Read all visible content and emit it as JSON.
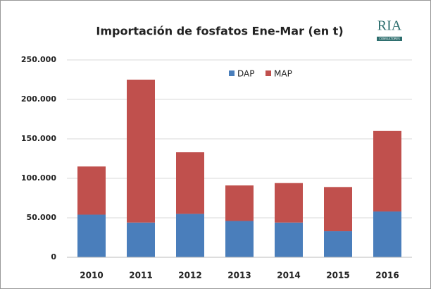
{
  "chart_data": {
    "type": "bar",
    "stacked": true,
    "title": "Importación de fosfatos Ene-Mar (en t)",
    "logo": {
      "name": "RIA",
      "tagline": "CONSULTORES"
    },
    "categories": [
      "2010",
      "2011",
      "2012",
      "2013",
      "2014",
      "2015",
      "2016"
    ],
    "series": [
      {
        "name": "DAP",
        "color": "#4a7ebb",
        "values": [
          54000,
          44000,
          55000,
          46000,
          44000,
          33000,
          58000
        ]
      },
      {
        "name": "MAP",
        "color": "#c0504d",
        "values": [
          61000,
          181000,
          78000,
          45000,
          50000,
          56000,
          102000
        ]
      }
    ],
    "ylim": [
      0,
      250000
    ],
    "yticks": [
      0,
      {
        "value": 50000,
        "label": "50.000"
      },
      {
        "value": 100000,
        "label": "100.000"
      },
      {
        "value": 150000,
        "label": "150.000"
      },
      {
        "value": 200000,
        "label": "200.000"
      },
      {
        "value": 250000,
        "label": "250.000"
      }
    ],
    "grid": true,
    "legend": "top"
  }
}
